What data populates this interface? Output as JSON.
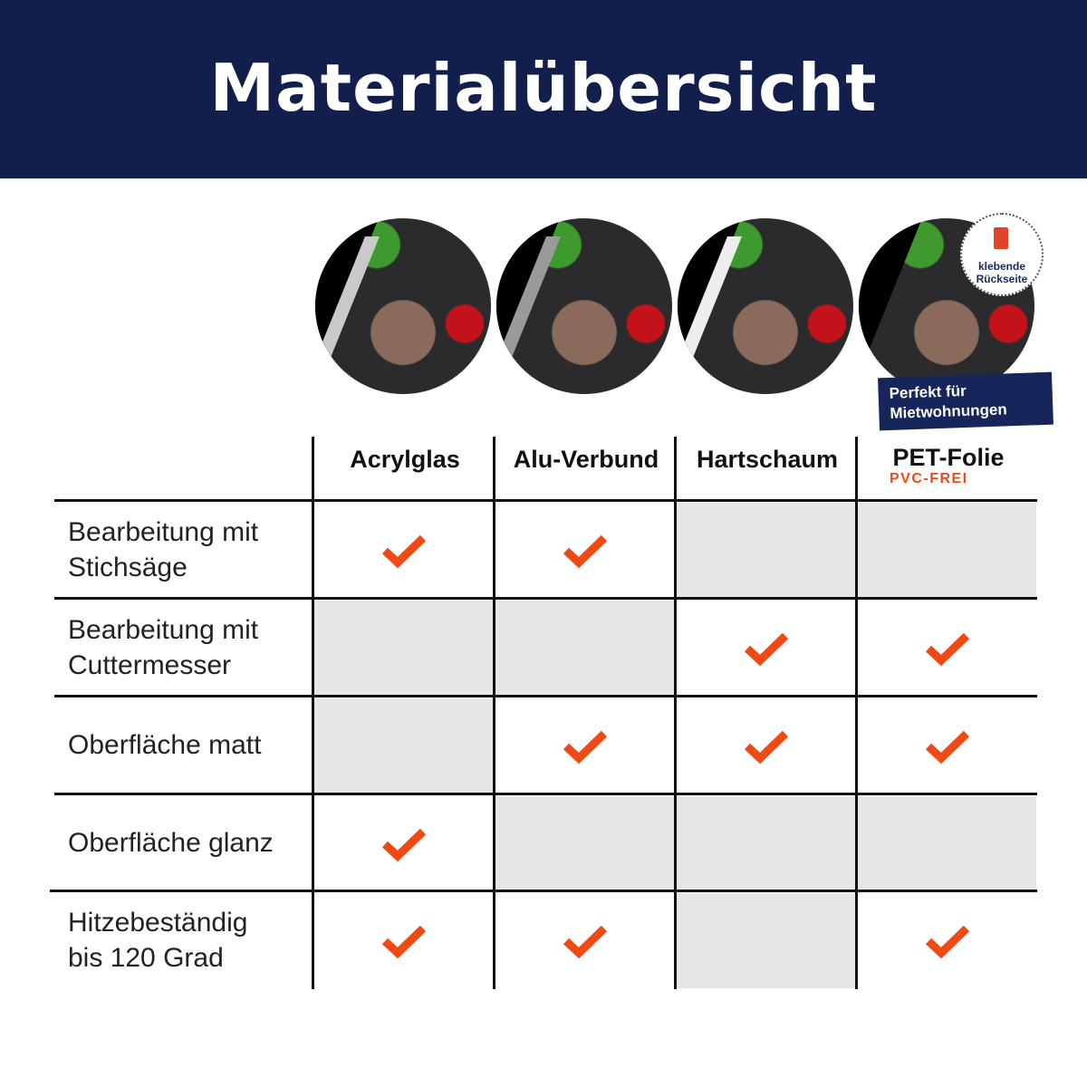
{
  "header": {
    "title": "Materialübersicht"
  },
  "badge": {
    "text_line1": "klebende",
    "text_line2": "Rückseite",
    "icon": "adhesive-peel-icon"
  },
  "banner": {
    "line1": "Perfekt für",
    "line2": "Mietwohnungen"
  },
  "columns": [
    {
      "label": "Acrylglas"
    },
    {
      "label": "Alu-Verbund"
    },
    {
      "label": "Hartschaum"
    },
    {
      "label": "PET-Folie",
      "sublabel": "PVC-FREI"
    }
  ],
  "colors": {
    "header": "#121f4d",
    "check": "#f04a14",
    "shaded_cell": "#e6e6e6"
  },
  "rows": [
    {
      "label_line1": "Bearbeitung mit",
      "label_line2": "Stichsäge",
      "checks": [
        true,
        true,
        false,
        false
      ]
    },
    {
      "label_line1": "Bearbeitung mit",
      "label_line2": "Cuttermesser",
      "checks": [
        false,
        false,
        true,
        true
      ]
    },
    {
      "label_line1": "Oberfläche matt",
      "label_line2": "",
      "checks": [
        false,
        true,
        true,
        true
      ]
    },
    {
      "label_line1": "Oberfläche glanz",
      "label_line2": "",
      "checks": [
        true,
        false,
        false,
        false
      ]
    },
    {
      "label_line1": "Hitzebeständig",
      "label_line2": "bis 120 Grad",
      "checks": [
        true,
        true,
        false,
        true
      ]
    }
  ]
}
